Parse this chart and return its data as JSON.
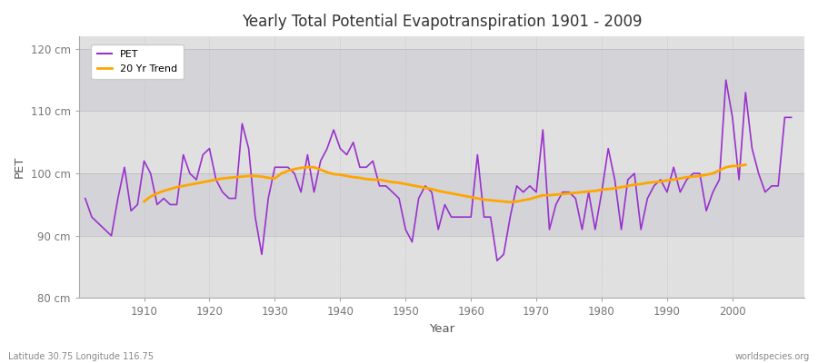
{
  "title": "Yearly Total Potential Evapotranspiration 1901 - 2009",
  "xlabel": "Year",
  "ylabel": "PET",
  "background_color": "#f5f5f5",
  "plot_bg_color": "#e0e0e0",
  "plot_bg_band_color": "#d4d4d8",
  "pet_color": "#9932cc",
  "trend_color": "#ffa500",
  "ylim": [
    80,
    122
  ],
  "yticks": [
    80,
    90,
    100,
    110,
    120
  ],
  "ytick_labels": [
    "80 cm",
    "90 cm",
    "100 cm",
    "110 cm",
    "120 cm"
  ],
  "xlim": [
    1900,
    2011
  ],
  "footer_left": "Latitude 30.75 Longitude 116.75",
  "footer_right": "worldspecies.org",
  "legend_labels": [
    "PET",
    "20 Yr Trend"
  ],
  "pet_values": [
    96,
    93,
    92,
    91,
    90,
    96,
    101,
    94,
    95,
    102,
    100,
    95,
    96,
    95,
    95,
    103,
    100,
    99,
    103,
    104,
    99,
    97,
    96,
    96,
    108,
    104,
    93,
    87,
    96,
    101,
    101,
    101,
    100,
    97,
    103,
    97,
    102,
    104,
    107,
    104,
    103,
    105,
    101,
    101,
    102,
    98,
    98,
    97,
    96,
    91,
    89,
    96,
    98,
    97,
    91,
    95,
    93,
    93,
    93,
    93,
    103,
    93,
    93,
    86,
    87,
    93,
    98,
    97,
    98,
    97,
    107,
    91,
    95,
    97,
    97,
    96,
    91,
    97,
    91,
    97,
    104,
    99,
    91,
    99,
    100,
    91,
    96,
    98,
    99,
    97,
    101,
    97,
    99,
    100,
    100,
    94,
    97,
    99,
    115,
    109,
    99,
    113,
    104,
    100,
    97,
    98,
    98,
    109,
    109
  ],
  "trend_values": [
    null,
    null,
    null,
    null,
    null,
    null,
    null,
    null,
    null,
    95.5,
    96.3,
    96.8,
    97.2,
    97.5,
    97.8,
    98.0,
    98.2,
    98.4,
    98.6,
    98.8,
    99.0,
    99.2,
    99.3,
    99.4,
    99.5,
    99.6,
    99.6,
    99.5,
    99.3,
    99.2,
    100.0,
    100.4,
    100.7,
    100.9,
    101.0,
    101.0,
    100.6,
    100.2,
    99.9,
    99.8,
    99.6,
    99.4,
    99.3,
    99.1,
    99.0,
    99.0,
    98.8,
    98.6,
    98.5,
    98.3,
    98.1,
    97.9,
    97.7,
    97.5,
    97.2,
    97.0,
    96.8,
    96.6,
    96.4,
    96.2,
    96.0,
    95.8,
    95.7,
    95.6,
    95.5,
    95.4,
    95.5,
    95.7,
    95.9,
    96.2,
    96.5,
    96.5,
    96.6,
    96.7,
    96.8,
    96.9,
    97.0,
    97.1,
    97.2,
    97.4,
    97.5,
    97.6,
    97.8,
    98.0,
    98.2,
    98.3,
    98.5,
    98.6,
    98.7,
    98.9,
    99.0,
    99.2,
    99.4,
    99.5,
    99.6,
    99.8,
    100.0,
    100.5,
    101.0,
    101.2,
    101.2,
    101.4,
    null,
    null,
    null,
    null,
    null,
    null,
    null
  ]
}
